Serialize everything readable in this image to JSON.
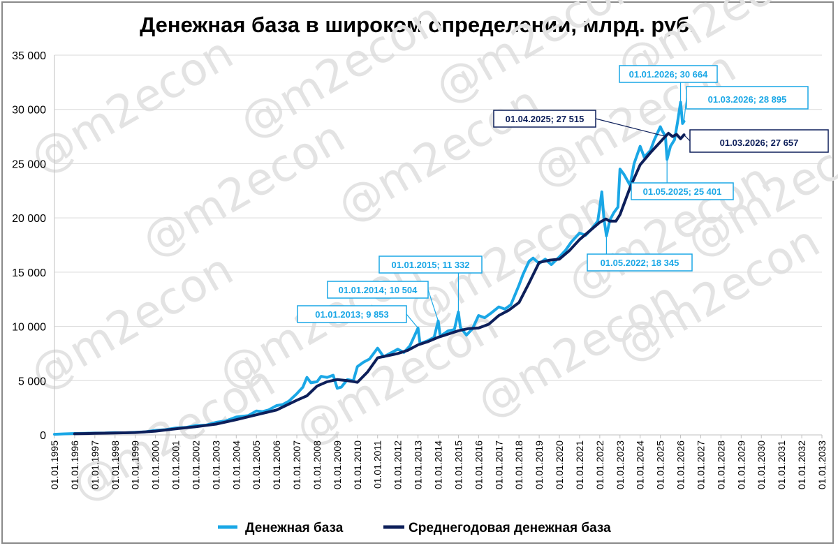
{
  "chart_data": {
    "type": "line",
    "title": "Денежная база в широком определении, млрд. руб.",
    "y_ticks": [
      "0",
      "5 000",
      "10 000",
      "15 000",
      "20 000",
      "25 000",
      "30 000",
      "35 000"
    ],
    "ylim": [
      0,
      35000
    ],
    "x_ticks": [
      "01.01.1995",
      "01.01.1996",
      "01.01.1997",
      "01.01.1998",
      "01.01.1999",
      "01.01.2000",
      "01.01.2001",
      "01.01.2002",
      "01.01.2003",
      "01.01.2004",
      "01.01.2005",
      "01.01.2006",
      "01.01.2007",
      "01.01.2008",
      "01.01.2009",
      "01.01.2010",
      "01.01.2011",
      "01.01.2012",
      "01.01.2013",
      "01.01.2014",
      "01.01.2015",
      "01.01.2016",
      "01.01.2017",
      "01.01.2018",
      "01.01.2019",
      "01.01.2020",
      "01.01.2021",
      "01.01.2022",
      "01.01.2023",
      "01.01.2024",
      "01.01.2025",
      "01.01.2026",
      "01.01.2027",
      "01.01.2028",
      "01.01.2029",
      "01.01.2030",
      "01.01.2031",
      "01.01.2032",
      "01.01.2033"
    ],
    "xlim": [
      1995,
      2033
    ],
    "grid": true,
    "legend_position": "bottom",
    "watermark": "@m2econ",
    "colors": {
      "base": "#1aa7e6",
      "avg": "#0d1f5a"
    },
    "series": [
      {
        "name": "Денежная база",
        "color": "#1aa7e6",
        "points": [
          [
            1995.0,
            60
          ],
          [
            1995.5,
            95
          ],
          [
            1996.0,
            130
          ],
          [
            1996.5,
            150
          ],
          [
            1997.0,
            165
          ],
          [
            1997.5,
            175
          ],
          [
            1998.0,
            210
          ],
          [
            1998.5,
            195
          ],
          [
            1999.0,
            240
          ],
          [
            1999.5,
            280
          ],
          [
            2000.0,
            420
          ],
          [
            2000.5,
            480
          ],
          [
            2001.0,
            640
          ],
          [
            2001.5,
            690
          ],
          [
            2002.0,
            860
          ],
          [
            2002.5,
            900
          ],
          [
            2003.0,
            1160
          ],
          [
            2003.5,
            1300
          ],
          [
            2004.0,
            1650
          ],
          [
            2004.3,
            1720
          ],
          [
            2004.6,
            1780
          ],
          [
            2005.0,
            2200
          ],
          [
            2005.3,
            2150
          ],
          [
            2005.6,
            2300
          ],
          [
            2006.0,
            2700
          ],
          [
            2006.3,
            2800
          ],
          [
            2006.6,
            3100
          ],
          [
            2007.0,
            3800
          ],
          [
            2007.3,
            4400
          ],
          [
            2007.5,
            5300
          ],
          [
            2007.7,
            4800
          ],
          [
            2008.0,
            4900
          ],
          [
            2008.2,
            5400
          ],
          [
            2008.5,
            5300
          ],
          [
            2008.8,
            5500
          ],
          [
            2009.0,
            4300
          ],
          [
            2009.2,
            4400
          ],
          [
            2009.5,
            5100
          ],
          [
            2009.8,
            5000
          ],
          [
            2010.0,
            6300
          ],
          [
            2010.3,
            6700
          ],
          [
            2010.6,
            7000
          ],
          [
            2011.0,
            8000
          ],
          [
            2011.3,
            7200
          ],
          [
            2011.6,
            7500
          ],
          [
            2012.0,
            7900
          ],
          [
            2012.3,
            7600
          ],
          [
            2012.6,
            8200
          ],
          [
            2013.0,
            9853
          ],
          [
            2013.1,
            8400
          ],
          [
            2013.5,
            8700
          ],
          [
            2013.8,
            9000
          ],
          [
            2014.0,
            10504
          ],
          [
            2014.1,
            9100
          ],
          [
            2014.5,
            9600
          ],
          [
            2014.8,
            9700
          ],
          [
            2015.0,
            11332
          ],
          [
            2015.1,
            9900
          ],
          [
            2015.4,
            9200
          ],
          [
            2015.7,
            9800
          ],
          [
            2016.0,
            11000
          ],
          [
            2016.3,
            10800
          ],
          [
            2016.6,
            11200
          ],
          [
            2017.0,
            11800
          ],
          [
            2017.3,
            11600
          ],
          [
            2017.6,
            12000
          ],
          [
            2018.0,
            13800
          ],
          [
            2018.2,
            14800
          ],
          [
            2018.5,
            16000
          ],
          [
            2018.7,
            16300
          ],
          [
            2019.0,
            15800
          ],
          [
            2019.3,
            16200
          ],
          [
            2019.6,
            15700
          ],
          [
            2020.0,
            16400
          ],
          [
            2020.3,
            17000
          ],
          [
            2020.6,
            17800
          ],
          [
            2021.0,
            18600
          ],
          [
            2021.3,
            18400
          ],
          [
            2021.6,
            19000
          ],
          [
            2021.9,
            19700
          ],
          [
            2022.0,
            21000
          ],
          [
            2022.1,
            22400
          ],
          [
            2022.2,
            20000
          ],
          [
            2022.33,
            18345
          ],
          [
            2022.5,
            19800
          ],
          [
            2022.7,
            20500
          ],
          [
            2022.9,
            21000
          ],
          [
            2023.0,
            24500
          ],
          [
            2023.2,
            24000
          ],
          [
            2023.5,
            23000
          ],
          [
            2023.7,
            25000
          ],
          [
            2024.0,
            26600
          ],
          [
            2024.2,
            25600
          ],
          [
            2024.5,
            26200
          ],
          [
            2024.7,
            27200
          ],
          [
            2025.0,
            28400
          ],
          [
            2025.1,
            28000
          ],
          [
            2025.25,
            27515
          ],
          [
            2025.33,
            25401
          ],
          [
            2025.5,
            26600
          ],
          [
            2025.7,
            27200
          ],
          [
            2025.85,
            28800
          ],
          [
            2026.0,
            30664
          ],
          [
            2026.1,
            28700
          ],
          [
            2026.17,
            28895
          ]
        ]
      },
      {
        "name": "Среднегодовая денежная база",
        "color": "#0d1f5a",
        "points": [
          [
            1996.0,
            100
          ],
          [
            1997.0,
            140
          ],
          [
            1998.0,
            180
          ],
          [
            1999.0,
            220
          ],
          [
            2000.0,
            350
          ],
          [
            2001.0,
            560
          ],
          [
            2002.0,
            750
          ],
          [
            2003.0,
            1000
          ],
          [
            2004.0,
            1400
          ],
          [
            2005.0,
            1850
          ],
          [
            2006.0,
            2300
          ],
          [
            2007.0,
            3200
          ],
          [
            2007.5,
            3600
          ],
          [
            2008.0,
            4500
          ],
          [
            2008.5,
            4900
          ],
          [
            2009.0,
            5100
          ],
          [
            2009.5,
            5000
          ],
          [
            2010.0,
            4850
          ],
          [
            2010.5,
            5800
          ],
          [
            2011.0,
            7100
          ],
          [
            2011.5,
            7300
          ],
          [
            2012.0,
            7500
          ],
          [
            2012.5,
            7800
          ],
          [
            2013.0,
            8300
          ],
          [
            2013.5,
            8600
          ],
          [
            2014.0,
            9000
          ],
          [
            2014.5,
            9300
          ],
          [
            2015.0,
            9600
          ],
          [
            2015.5,
            9800
          ],
          [
            2016.0,
            9850
          ],
          [
            2016.5,
            10200
          ],
          [
            2017.0,
            11000
          ],
          [
            2017.5,
            11500
          ],
          [
            2018.0,
            12200
          ],
          [
            2018.5,
            14000
          ],
          [
            2019.0,
            15900
          ],
          [
            2019.5,
            16100
          ],
          [
            2020.0,
            16200
          ],
          [
            2020.5,
            17000
          ],
          [
            2021.0,
            18000
          ],
          [
            2021.5,
            18800
          ],
          [
            2022.0,
            19600
          ],
          [
            2022.3,
            19900
          ],
          [
            2022.5,
            19700
          ],
          [
            2022.8,
            19700
          ],
          [
            2023.0,
            20300
          ],
          [
            2023.5,
            22800
          ],
          [
            2024.0,
            24900
          ],
          [
            2024.5,
            26000
          ],
          [
            2025.0,
            27000
          ],
          [
            2025.25,
            27515
          ],
          [
            2025.4,
            27800
          ],
          [
            2025.6,
            27500
          ],
          [
            2025.8,
            27700
          ],
          [
            2026.0,
            27300
          ],
          [
            2026.17,
            27657
          ]
        ]
      }
    ],
    "annotations": [
      {
        "text": "01.01.2013;  9 853",
        "x": 2013.0,
        "y": 9853,
        "series": "base",
        "large": false
      },
      {
        "text": "01.01.2014;  10 504",
        "x": 2014.0,
        "y": 10504,
        "series": "base",
        "large": false
      },
      {
        "text": "01.01.2015;  11 332",
        "x": 2015.0,
        "y": 11332,
        "series": "base",
        "large": false
      },
      {
        "text": "01.05.2022;  18 345",
        "x": 2022.33,
        "y": 18345,
        "series": "base",
        "large": false
      },
      {
        "text": "01.05.2025;  25 401",
        "x": 2025.33,
        "y": 25401,
        "series": "base",
        "large": false
      },
      {
        "text": "01.01.2026;  30 664",
        "x": 2026.0,
        "y": 30664,
        "series": "base",
        "large": false
      },
      {
        "text": "01.03.2026;  28 895",
        "x": 2026.17,
        "y": 28895,
        "series": "base",
        "large": true
      },
      {
        "text": "01.04.2025;  27 515",
        "x": 2025.25,
        "y": 27515,
        "series": "avg",
        "large": false
      },
      {
        "text": "01.03.2026;  27 657",
        "x": 2026.17,
        "y": 27657,
        "series": "avg",
        "large": true
      }
    ]
  }
}
